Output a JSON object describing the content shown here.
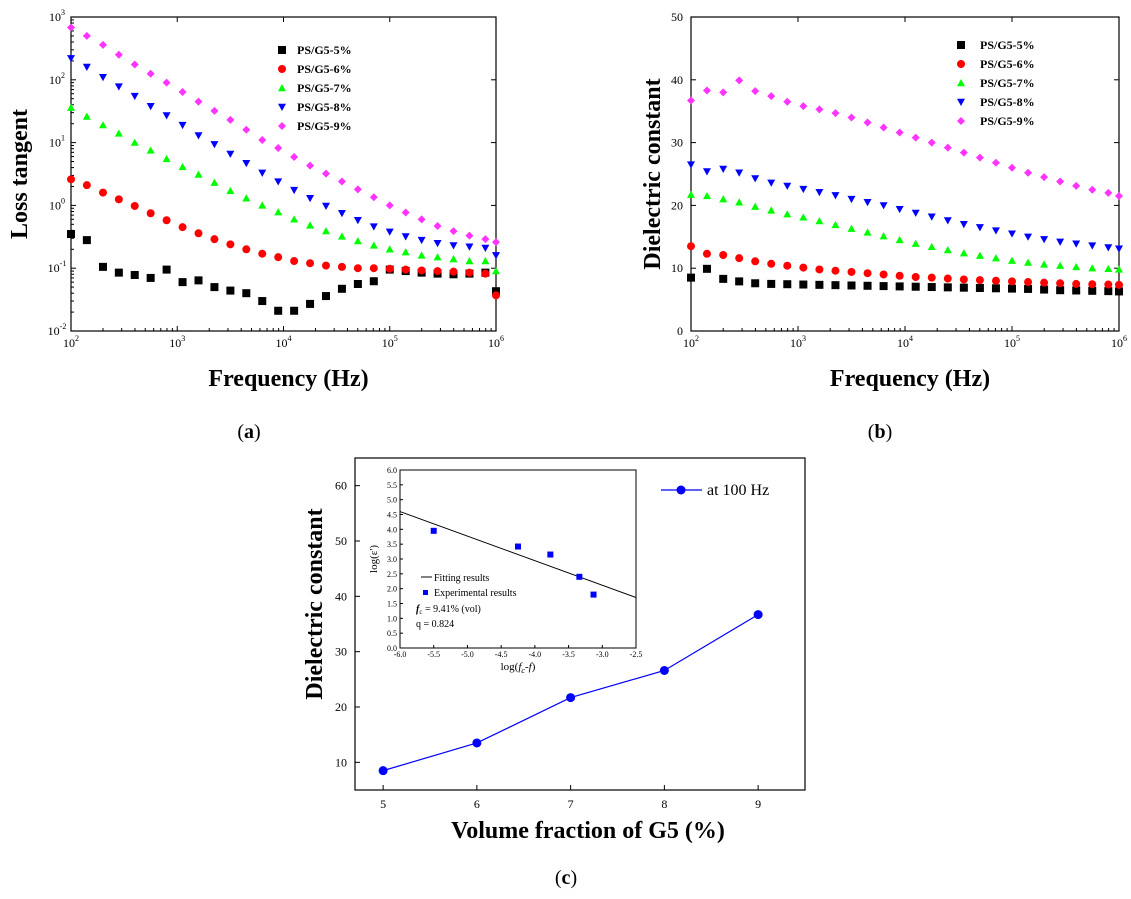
{
  "chart_data": [
    {
      "panel": "a",
      "type": "scatter",
      "xlabel": "Frequency (Hz)",
      "ylabel": "Loss tangent",
      "x_scale": "log",
      "y_scale": "log",
      "xlim": [
        100,
        1000000
      ],
      "ylim": [
        0.01,
        1000
      ],
      "x_ticks": [
        "10^2",
        "10^3",
        "10^4",
        "10^5",
        "10^6"
      ],
      "y_ticks": [
        "10^-2",
        "10^-1",
        "10^0",
        "10^1",
        "10^2",
        "10^3"
      ],
      "legend_position": "top-right",
      "x": [
        100,
        141,
        200,
        282,
        398,
        562,
        794,
        1122,
        1585,
        2239,
        3162,
        4467,
        6310,
        8913,
        12589,
        17783,
        25119,
        35481,
        50119,
        70795,
        100000,
        141254,
        199526,
        281838,
        398107,
        562341,
        794328,
        1000000
      ],
      "series": [
        {
          "name": "PS/G5-5%",
          "color": "#000000",
          "marker": "square",
          "values": [
            0.35,
            0.28,
            0.105,
            0.085,
            0.078,
            0.07,
            0.095,
            0.06,
            0.064,
            0.05,
            0.044,
            0.04,
            0.03,
            0.021,
            0.021,
            0.027,
            0.036,
            0.047,
            0.056,
            0.062,
            0.095,
            0.09,
            0.085,
            0.082,
            0.08,
            0.082,
            0.085,
            0.043
          ]
        },
        {
          "name": "PS/G5-6%",
          "color": "#ff0000",
          "marker": "circle",
          "values": [
            2.6,
            2.1,
            1.6,
            1.25,
            0.98,
            0.75,
            0.58,
            0.45,
            0.36,
            0.29,
            0.24,
            0.2,
            0.17,
            0.15,
            0.13,
            0.12,
            0.11,
            0.105,
            0.1,
            0.1,
            0.098,
            0.095,
            0.092,
            0.09,
            0.088,
            0.085,
            0.082,
            0.037
          ]
        },
        {
          "name": "PS/G5-7%",
          "color": "#00ff00",
          "marker": "triangle-up",
          "values": [
            36,
            26,
            19,
            14,
            10,
            7.5,
            5.5,
            4.1,
            3.1,
            2.3,
            1.7,
            1.3,
            1.0,
            0.78,
            0.6,
            0.48,
            0.39,
            0.32,
            0.27,
            0.23,
            0.2,
            0.18,
            0.16,
            0.15,
            0.14,
            0.13,
            0.13,
            0.09
          ]
        },
        {
          "name": "PS/G5-8%",
          "color": "#0000ff",
          "marker": "triangle-down",
          "values": [
            220,
            160,
            110,
            78,
            55,
            38,
            27,
            19,
            13,
            9.4,
            6.6,
            4.7,
            3.3,
            2.4,
            1.75,
            1.3,
            0.98,
            0.75,
            0.58,
            0.46,
            0.38,
            0.32,
            0.28,
            0.25,
            0.23,
            0.22,
            0.21,
            0.16
          ]
        },
        {
          "name": "PS/G5-9%",
          "color": "#ff33ff",
          "marker": "diamond",
          "values": [
            680,
            500,
            360,
            250,
            175,
            125,
            90,
            64,
            45,
            32,
            23,
            16,
            11,
            8.2,
            5.9,
            4.3,
            3.2,
            2.4,
            1.8,
            1.35,
            1.0,
            0.77,
            0.6,
            0.47,
            0.39,
            0.33,
            0.29,
            0.26
          ]
        }
      ]
    },
    {
      "panel": "b",
      "type": "scatter",
      "xlabel": "Frequency (Hz)",
      "ylabel": "Dielectric constant",
      "x_scale": "log",
      "xlim": [
        100,
        1000000
      ],
      "ylim": [
        0,
        50
      ],
      "x_ticks": [
        "10^2",
        "10^3",
        "10^4",
        "10^5",
        "10^6"
      ],
      "y_ticks": [
        "0",
        "10",
        "20",
        "30",
        "40",
        "50"
      ],
      "legend_position": "top-right",
      "x": [
        100,
        141,
        200,
        282,
        398,
        562,
        794,
        1122,
        1585,
        2239,
        3162,
        4467,
        6310,
        8913,
        12589,
        17783,
        25119,
        35481,
        50119,
        70795,
        100000,
        141254,
        199526,
        281838,
        398107,
        562341,
        794328,
        1000000
      ],
      "series": [
        {
          "name": "PS/G5-5%",
          "color": "#000000",
          "marker": "square",
          "values": [
            8.5,
            9.9,
            8.3,
            7.9,
            7.6,
            7.5,
            7.45,
            7.4,
            7.35,
            7.3,
            7.25,
            7.2,
            7.15,
            7.1,
            7.05,
            7.0,
            6.95,
            6.9,
            6.85,
            6.8,
            6.75,
            6.7,
            6.6,
            6.5,
            6.45,
            6.4,
            6.35,
            6.3
          ]
        },
        {
          "name": "PS/G5-6%",
          "color": "#ff0000",
          "marker": "circle",
          "values": [
            13.5,
            12.3,
            12.1,
            11.6,
            11.1,
            10.7,
            10.4,
            10.1,
            9.8,
            9.6,
            9.4,
            9.2,
            9.0,
            8.8,
            8.6,
            8.5,
            8.35,
            8.2,
            8.1,
            8.0,
            7.9,
            7.8,
            7.7,
            7.6,
            7.5,
            7.45,
            7.4,
            7.35
          ]
        },
        {
          "name": "PS/G5-7%",
          "color": "#00ff00",
          "marker": "triangle-up",
          "values": [
            21.7,
            21.5,
            21.0,
            20.5,
            19.8,
            19.2,
            18.6,
            18.1,
            17.5,
            16.9,
            16.3,
            15.7,
            15.1,
            14.5,
            13.9,
            13.4,
            12.9,
            12.4,
            12.0,
            11.6,
            11.2,
            10.9,
            10.6,
            10.4,
            10.2,
            10.0,
            9.9,
            9.8
          ]
        },
        {
          "name": "PS/G5-8%",
          "color": "#0000ff",
          "marker": "triangle-down",
          "values": [
            26.5,
            25.4,
            25.8,
            25.2,
            24.3,
            23.6,
            23.1,
            22.6,
            22.1,
            21.6,
            21.0,
            20.5,
            20.0,
            19.4,
            18.8,
            18.2,
            17.6,
            17.0,
            16.5,
            16.0,
            15.5,
            15.0,
            14.6,
            14.2,
            13.9,
            13.6,
            13.3,
            13.1
          ]
        },
        {
          "name": "PS/G5-9%",
          "color": "#ff33ff",
          "marker": "diamond",
          "values": [
            36.7,
            38.3,
            38.0,
            39.9,
            38.2,
            37.4,
            36.5,
            35.8,
            35.3,
            34.7,
            34.0,
            33.2,
            32.4,
            31.6,
            30.8,
            30.0,
            29.2,
            28.4,
            27.6,
            26.8,
            26.0,
            25.2,
            24.5,
            23.8,
            23.1,
            22.5,
            22.0,
            21.5
          ]
        }
      ]
    },
    {
      "panel": "c",
      "type": "line",
      "xlabel": "Volume fraction of G5 (%)",
      "ylabel": "Dielectric constant",
      "xlim": [
        4.7,
        9.5
      ],
      "ylim": [
        5,
        65
      ],
      "x_ticks": [
        "5",
        "6",
        "7",
        "8",
        "9"
      ],
      "y_ticks": [
        "10",
        "20",
        "30",
        "40",
        "50",
        "60"
      ],
      "legend_position": "top-right",
      "x": [
        5,
        6,
        7,
        8,
        9
      ],
      "series": [
        {
          "name": "at 100 Hz",
          "color": "#0000ff",
          "marker": "circle",
          "values": [
            8.5,
            13.5,
            21.7,
            26.6,
            36.7
          ]
        }
      ],
      "inset": {
        "type": "scatter",
        "xlabel": "log(fc-f)",
        "ylabel": "log(ε')",
        "xlim": [
          -6.0,
          -2.5
        ],
        "ylim": [
          0.0,
          6.0
        ],
        "x_ticks": [
          "-6.0",
          "-5.5",
          "-5.0",
          "-4.5",
          "-4.0",
          "-3.5",
          "-3.0",
          "-2.5"
        ],
        "y_ticks": [
          "0.0",
          "0.5",
          "1.0",
          "1.5",
          "2.0",
          "2.5",
          "3.0",
          "3.5",
          "4.0",
          "4.5",
          "5.0",
          "5.5",
          "6.0"
        ],
        "fit_line": {
          "name": "Fitting results",
          "x": [
            -6.0,
            -2.5
          ],
          "y": [
            4.6,
            1.7
          ]
        },
        "points": {
          "name": "Experimental results",
          "x": [
            -5.5,
            -4.25,
            -3.77,
            -3.34,
            -3.13
          ],
          "y": [
            3.95,
            3.42,
            3.15,
            2.4,
            1.8
          ]
        },
        "annotations": [
          "= 9.41% (vol)",
          "q = 0.824"
        ]
      }
    }
  ],
  "panel_labels": [
    "(a)",
    "(b)",
    "(c)"
  ]
}
